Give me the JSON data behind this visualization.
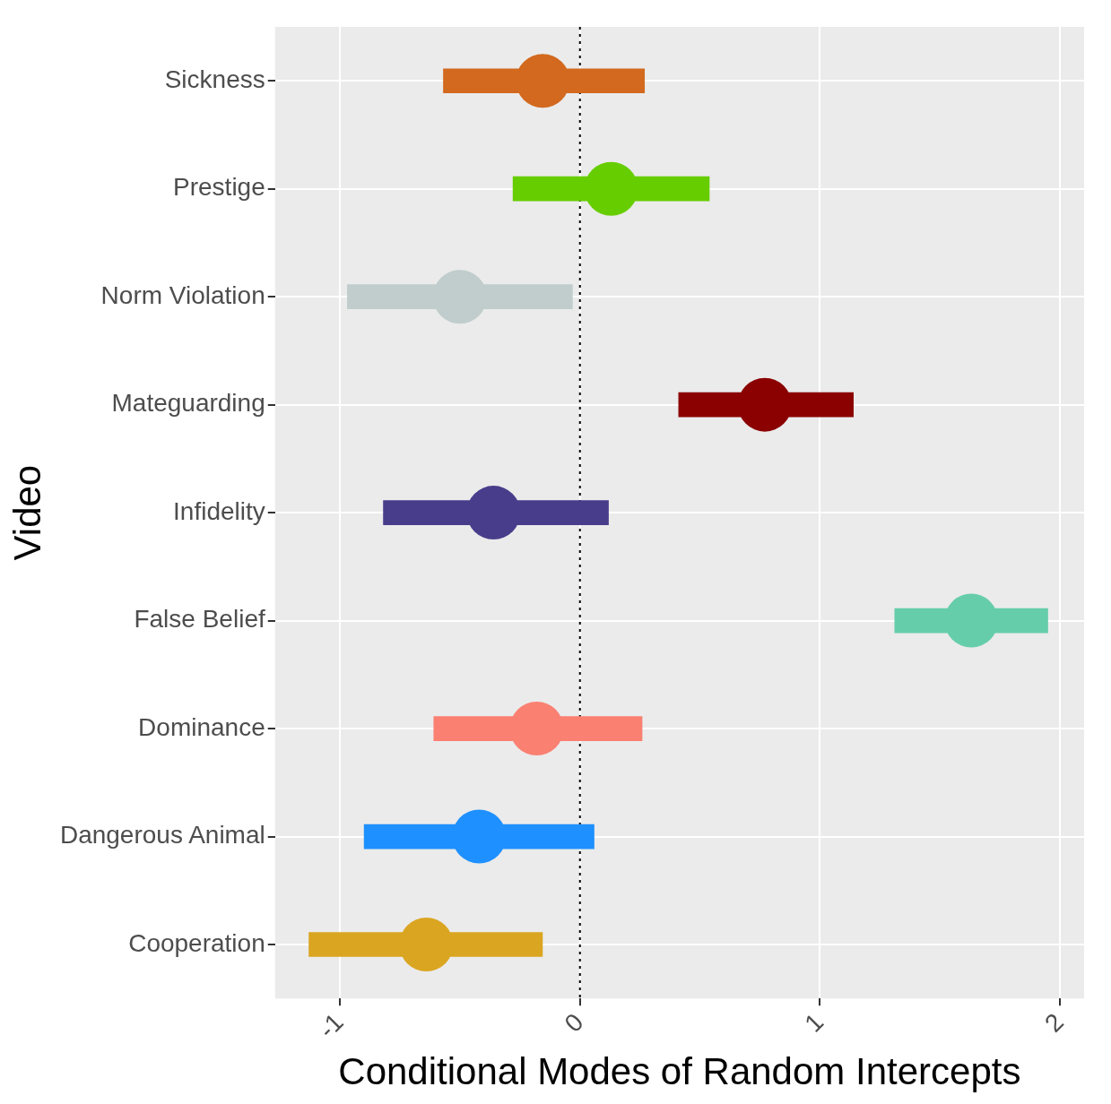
{
  "chart_data": {
    "type": "bar",
    "orientation": "horizontal",
    "xlabel": "Conditional Modes of Random Intercepts",
    "ylabel": "Video",
    "categories": [
      "Sickness",
      "Prestige",
      "Norm Violation",
      "Mateguarding",
      "Infidelity",
      "False Belief",
      "Dominance",
      "Dangerous Animal",
      "Cooperation"
    ],
    "series": [
      {
        "base": [
          -0.57,
          -0.28,
          -0.97,
          0.41,
          -0.82,
          1.31,
          -0.61,
          -0.9,
          -1.13
        ],
        "values": [
          0.84,
          0.82,
          0.94,
          0.73,
          0.94,
          0.64,
          0.87,
          0.96,
          0.975
        ],
        "colors": [
          "#d2691e",
          "#66cd00",
          "#c1cdcd",
          "#8b0000",
          "#483d8b",
          "#66cdaa",
          "#fa8072",
          "#1e90ff",
          "#daa520"
        ]
      },
      {
        "type": "scatter",
        "marker": "circle",
        "values": [
          -0.155,
          0.13,
          -0.5,
          0.77,
          -0.36,
          1.63,
          -0.18,
          -0.42,
          -0.64
        ],
        "colors": [
          "#d2691e",
          "#66cd00",
          "#c1cdcd",
          "#8b0000",
          "#483d8b",
          "#66cdaa",
          "#fa8072",
          "#1e90ff",
          "#daa520"
        ]
      }
    ],
    "xlim": [
      -1.27,
      2.1
    ],
    "xticks": [
      -1,
      0,
      1,
      2
    ],
    "ref_lines": [
      {
        "axis": "x",
        "value": 0,
        "line_style": "dotted",
        "color": "#000000"
      }
    ],
    "grid": true,
    "legend": false
  }
}
